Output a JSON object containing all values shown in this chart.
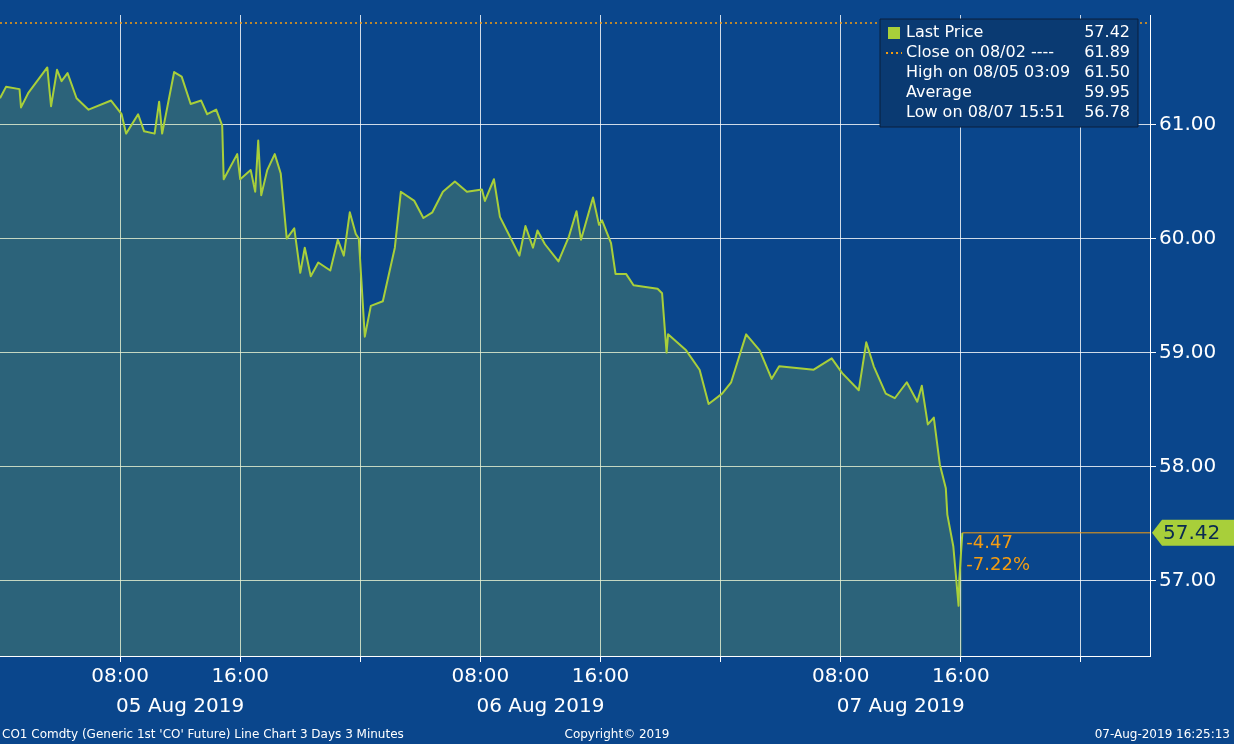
{
  "chart_data": {
    "type": "area",
    "x": [
      "2019-08-05T00:00",
      "2019-08-05T00:24",
      "2019-08-05T01:18",
      "2019-08-05T01:24",
      "2019-08-05T01:54",
      "2019-08-05T03:09",
      "2019-08-05T03:24",
      "2019-08-05T03:48",
      "2019-08-05T04:06",
      "2019-08-05T04:30",
      "2019-08-05T05:06",
      "2019-08-05T05:54",
      "2019-08-05T07:24",
      "2019-08-05T08:06",
      "2019-08-05T08:24",
      "2019-08-05T09:12",
      "2019-08-05T09:36",
      "2019-08-05T10:18",
      "2019-08-05T10:36",
      "2019-08-05T10:48",
      "2019-08-05T11:36",
      "2019-08-05T12:06",
      "2019-08-05T12:42",
      "2019-08-05T13:24",
      "2019-08-05T13:48",
      "2019-08-05T14:24",
      "2019-08-05T14:48",
      "2019-08-05T14:54",
      "2019-08-05T15:48",
      "2019-08-05T16:00",
      "2019-08-05T16:42",
      "2019-08-05T17:00",
      "2019-08-05T17:12",
      "2019-08-05T17:24",
      "2019-08-05T17:48",
      "2019-08-05T18:18",
      "2019-08-05T18:42",
      "2019-08-05T19:06",
      "2019-08-05T19:36",
      "2019-08-05T20:00",
      "2019-08-05T20:18",
      "2019-08-05T20:42",
      "2019-08-05T21:12",
      "2019-08-05T22:00",
      "2019-08-05T22:30",
      "2019-08-05T22:54",
      "2019-08-05T23:18",
      "2019-08-05T23:42",
      "2019-08-05T23:54",
      "2019-08-06T00:18",
      "2019-08-06T00:42",
      "2019-08-06T01:30",
      "2019-08-06T02:18",
      "2019-08-06T02:42",
      "2019-08-06T03:36",
      "2019-08-06T04:12",
      "2019-08-06T04:48",
      "2019-08-06T05:30",
      "2019-08-06T06:18",
      "2019-08-06T07:06",
      "2019-08-06T08:06",
      "2019-08-06T08:18",
      "2019-08-06T08:54",
      "2019-08-06T09:18",
      "2019-08-06T09:48",
      "2019-08-06T10:36",
      "2019-08-06T11:00",
      "2019-08-06T11:30",
      "2019-08-06T11:48",
      "2019-08-06T12:18",
      "2019-08-06T13:12",
      "2019-08-06T13:54",
      "2019-08-06T14:24",
      "2019-08-06T14:42",
      "2019-08-06T15:30",
      "2019-08-06T15:54",
      "2019-08-06T16:06",
      "2019-08-06T16:42",
      "2019-08-06T17:00",
      "2019-08-06T17:42",
      "2019-08-06T18:12",
      "2019-08-06T19:48",
      "2019-08-06T20:06",
      "2019-08-06T20:24",
      "2019-08-06T20:30",
      "2019-08-06T21:42",
      "2019-08-06T22:36",
      "2019-08-06T23:12",
      "2019-08-07T00:06",
      "2019-08-07T00:42",
      "2019-08-07T01:42",
      "2019-08-07T02:36",
      "2019-08-07T03:24",
      "2019-08-07T03:54",
      "2019-08-07T06:12",
      "2019-08-07T07:24",
      "2019-08-07T08:06",
      "2019-08-07T09:12",
      "2019-08-07T09:42",
      "2019-08-07T10:12",
      "2019-08-07T11:00",
      "2019-08-07T11:36",
      "2019-08-07T12:24",
      "2019-08-07T13:06",
      "2019-08-07T13:24",
      "2019-08-07T13:48",
      "2019-08-07T14:12",
      "2019-08-07T14:36",
      "2019-08-07T15:00",
      "2019-08-07T15:06",
      "2019-08-07T15:30",
      "2019-08-07T15:51",
      "2019-08-07T15:54",
      "2019-08-07T16:06"
    ],
    "series": [
      {
        "name": "Last Price",
        "color": "#a8cf3a",
        "values": [
          61.23,
          61.33,
          61.31,
          61.15,
          61.28,
          61.5,
          61.16,
          61.48,
          61.38,
          61.45,
          61.23,
          61.13,
          61.21,
          61.09,
          60.92,
          61.09,
          60.94,
          60.92,
          61.2,
          60.92,
          61.46,
          61.42,
          61.18,
          61.21,
          61.09,
          61.13,
          60.99,
          60.52,
          60.74,
          60.52,
          60.6,
          60.41,
          60.86,
          60.38,
          60.6,
          60.74,
          60.57,
          60.0,
          60.09,
          59.7,
          59.92,
          59.67,
          59.79,
          59.72,
          59.99,
          59.85,
          60.23,
          60.04,
          60.0,
          59.14,
          59.41,
          59.45,
          59.92,
          60.41,
          60.33,
          60.18,
          60.23,
          60.41,
          60.5,
          60.41,
          60.43,
          60.33,
          60.52,
          60.19,
          60.06,
          59.85,
          60.11,
          59.92,
          60.07,
          59.95,
          59.8,
          60.02,
          60.24,
          59.99,
          60.36,
          60.12,
          60.16,
          59.96,
          59.69,
          59.69,
          59.59,
          59.56,
          59.52,
          59.0,
          59.16,
          59.02,
          58.85,
          58.55,
          58.64,
          58.74,
          59.16,
          59.02,
          58.77,
          58.88,
          58.85,
          58.95,
          58.82,
          58.67,
          59.09,
          58.88,
          58.64,
          58.6,
          58.74,
          58.57,
          58.71,
          58.37,
          58.43,
          58.02,
          57.81,
          57.58,
          57.3,
          56.78,
          57.02,
          57.42
        ],
        "value_labels": [
          null,
          null,
          null,
          null,
          null,
          null,
          null,
          null,
          null,
          null,
          null,
          null,
          null,
          null,
          null,
          null,
          null,
          null,
          null,
          null,
          null,
          null,
          null,
          null,
          null,
          null,
          null,
          null,
          null,
          null,
          null,
          null,
          null,
          null,
          null,
          null,
          null,
          null,
          null,
          null,
          null,
          null,
          null,
          null,
          null,
          null,
          null,
          null,
          null,
          null,
          null,
          null,
          null,
          null,
          null,
          null,
          null,
          null,
          null,
          null,
          null,
          null,
          null,
          null,
          null,
          null,
          null,
          null,
          null,
          null,
          null,
          null,
          null,
          null,
          null,
          null,
          null,
          null,
          null,
          null,
          null,
          null,
          null,
          null,
          null,
          null,
          null,
          null,
          null,
          null,
          null,
          null,
          null,
          null,
          null,
          null,
          null,
          null,
          null,
          null,
          null,
          null,
          null,
          null,
          null,
          null,
          null,
          null,
          null,
          null,
          null,
          null,
          null,
          "57.42"
        ]
      }
    ],
    "xlim": [
      "2019-08-05T00:00",
      "2019-08-08T04:36"
    ],
    "xticks": [
      {
        "value": "2019-08-05T08:00",
        "label": "08:00"
      },
      {
        "value": "2019-08-05T16:00",
        "label": "16:00"
      },
      {
        "value": "2019-08-06T00:00",
        "label": null
      },
      {
        "value": "2019-08-06T08:00",
        "label": "08:00"
      },
      {
        "value": "2019-08-06T16:00",
        "label": "16:00"
      },
      {
        "value": "2019-08-07T00:00",
        "label": null
      },
      {
        "value": "2019-08-07T08:00",
        "label": "08:00"
      },
      {
        "value": "2019-08-07T16:00",
        "label": "16:00"
      },
      {
        "value": "2019-08-08T00:00",
        "label": null
      }
    ],
    "x2lim": [
      "2019-08-05T00:00",
      "2019-08-08T04:36"
    ],
    "x2ticks": [
      {
        "value": "2019-08-05T12:00",
        "label": "05 Aug 2019"
      },
      {
        "value": "2019-08-06T12:00",
        "label": "06 Aug 2019"
      },
      {
        "value": "2019-08-07T12:00",
        "label": "07 Aug 2019"
      }
    ],
    "ylim": [
      56.34,
      61.96
    ],
    "yticks": [
      {
        "value": 57,
        "label": "57.00"
      },
      {
        "value": 58,
        "label": "58.00"
      },
      {
        "value": 59,
        "label": "59.00"
      },
      {
        "value": 60,
        "label": "60.00"
      },
      {
        "value": 61,
        "label": "61.00"
      }
    ],
    "grid": true,
    "legend": "top right",
    "ref_lines": [
      {
        "axis": "y",
        "value": 61.89,
        "label": "Close on 08/02 ---- 61.89",
        "color": "#f39c12",
        "line_style": "dotted"
      }
    ],
    "annotations": [
      "High on 08/05 03:09 61.50",
      "Average 59.95",
      "Low on 08/07 15:51 56.78",
      "CO1 Comdty (Generic 1st 'CO' Future) Line Chart 3 Days 3 Minutes",
      "Copyright© 2019",
      "07-Aug-2019 16:25:13",
      {
        "text": "-4.47",
        "x": "2019-08-07T16:06",
        "y": 57.42
      },
      {
        "text": "-7.22%",
        "x": "2019-08-07T16:06",
        "y": 57.42
      }
    ]
  }
}
